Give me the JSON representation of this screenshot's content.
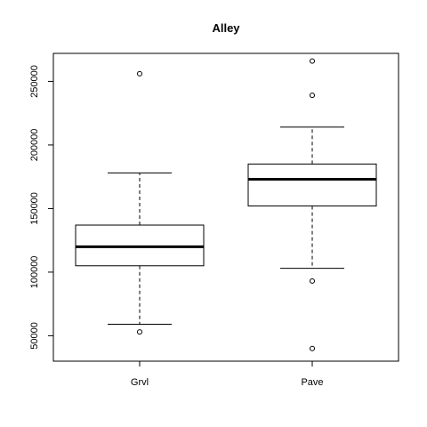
{
  "chart_data": {
    "type": "boxplot",
    "title": "Alley",
    "xlabel": "",
    "ylabel": "",
    "categories": [
      "Grvl",
      "Pave"
    ],
    "ylim": [
      30000,
      272000
    ],
    "y_ticks": [
      50000,
      100000,
      150000,
      200000,
      250000
    ],
    "y_tick_labels": [
      "50000",
      "100000",
      "150000",
      "200000",
      "250000"
    ],
    "boxes": [
      {
        "category": "Grvl",
        "whisker_low": 59000,
        "q1": 105000,
        "median": 120000,
        "q3": 137000,
        "whisker_high": 178000,
        "outliers": [
          53000,
          256000
        ]
      },
      {
        "category": "Pave",
        "whisker_low": 103000,
        "q1": 152000,
        "median": 173000,
        "q3": 185000,
        "whisker_high": 214000,
        "outliers": [
          40000,
          93000,
          239000,
          266000
        ]
      }
    ],
    "grid": false,
    "legend": "none"
  }
}
